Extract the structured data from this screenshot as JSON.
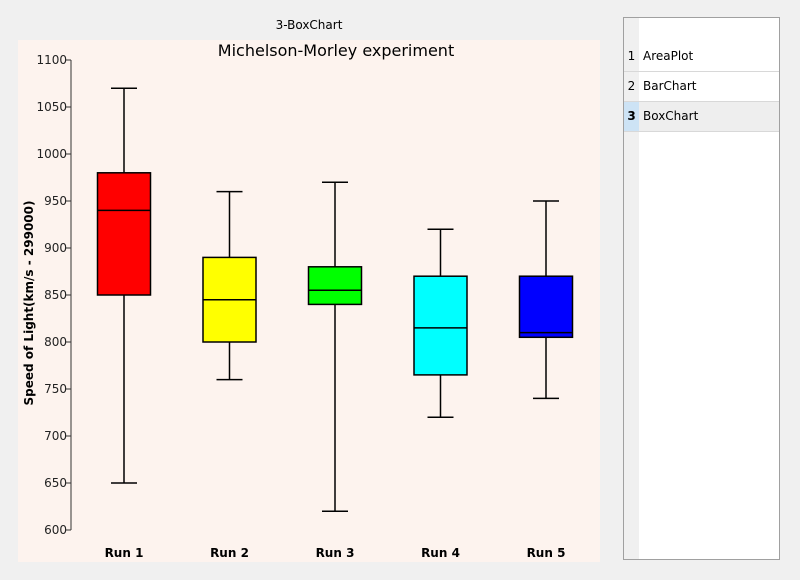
{
  "window": {
    "title": "3-BoxChart"
  },
  "chart_data": {
    "type": "box",
    "title": "Michelson-Morley experiment",
    "xlabel": "",
    "ylabel": "Speed of Light(km/s - 299000)",
    "ylim": [
      600,
      1100
    ],
    "yticks": [
      600,
      650,
      700,
      750,
      800,
      850,
      900,
      950,
      1000,
      1050,
      1100
    ],
    "grid": false,
    "categories": [
      "Run 1",
      "Run 2",
      "Run 3",
      "Run 4",
      "Run 5"
    ],
    "colors": [
      "#ff0000",
      "#ffff00",
      "#00ff00",
      "#00ffff",
      "#0000ff"
    ],
    "boxes": [
      {
        "min": 650,
        "q1": 850,
        "median": 940,
        "q3": 980,
        "max": 1070
      },
      {
        "min": 760,
        "q1": 800,
        "median": 845,
        "q3": 890,
        "max": 960
      },
      {
        "min": 620,
        "q1": 840,
        "median": 855,
        "q3": 880,
        "max": 970
      },
      {
        "min": 720,
        "q1": 765,
        "median": 815,
        "q3": 870,
        "max": 920
      },
      {
        "min": 740,
        "q1": 805,
        "median": 810,
        "q3": 870,
        "max": 950
      }
    ]
  },
  "sidebar": {
    "items": [
      {
        "num": "1",
        "label": "AreaPlot"
      },
      {
        "num": "2",
        "label": "BarChart"
      },
      {
        "num": "3",
        "label": "BoxChart"
      }
    ],
    "selected_index": 2
  }
}
